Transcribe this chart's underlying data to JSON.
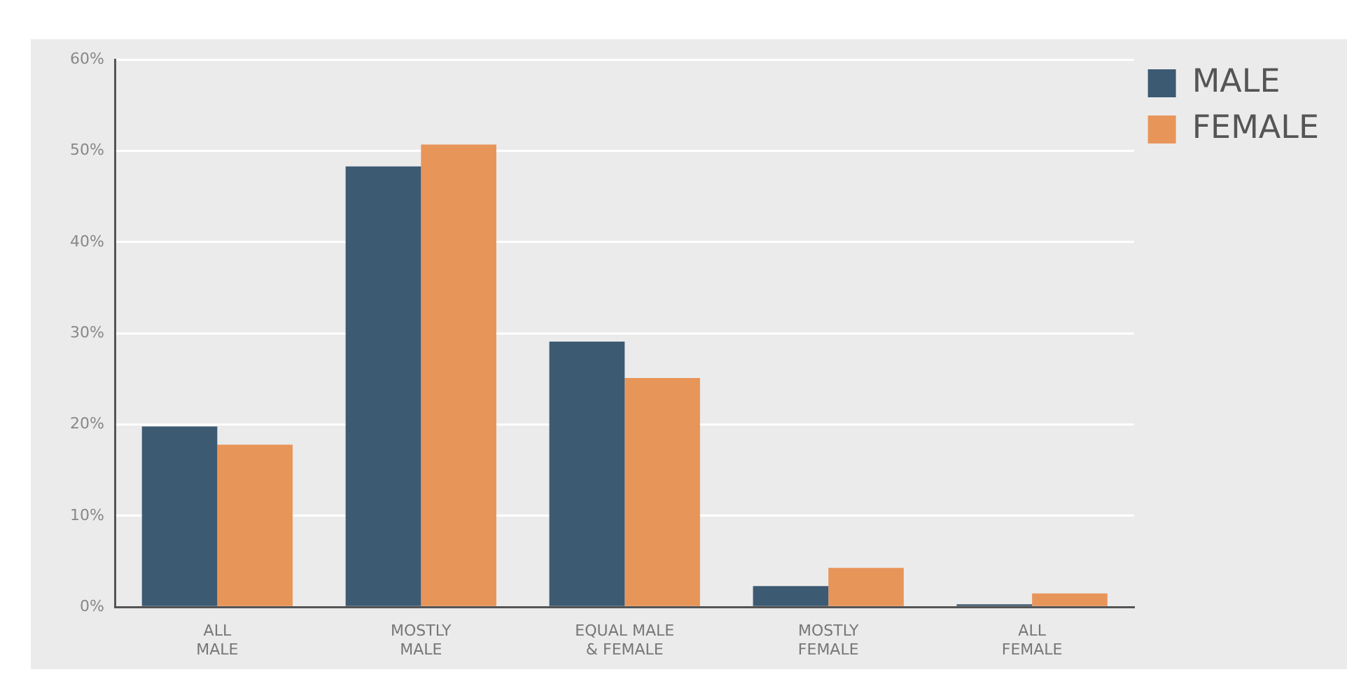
{
  "chart_data": {
    "type": "bar",
    "categories": [
      "ALL\nMALE",
      "MOSTLY\nMALE",
      "EQUAL MALE\n& FEMALE",
      "MOSTLY\nFEMALE",
      "ALL\nFEMALE"
    ],
    "series": [
      {
        "name": "MALE",
        "color": "#3d5a73",
        "values": [
          19.8,
          48.3,
          29.1,
          2.3,
          0.3
        ]
      },
      {
        "name": "FEMALE",
        "color": "#e8955a",
        "values": [
          17.8,
          50.7,
          25.1,
          4.3,
          1.5
        ]
      }
    ],
    "ylim": [
      0,
      60
    ],
    "yticks": [
      {
        "value": 0,
        "label": "0%"
      },
      {
        "value": 10,
        "label": "10%"
      },
      {
        "value": 20,
        "label": "20%"
      },
      {
        "value": 30,
        "label": "30%"
      },
      {
        "value": 40,
        "label": "40%"
      },
      {
        "value": 50,
        "label": "50%"
      },
      {
        "value": 60,
        "label": "60%"
      }
    ],
    "grid": "y",
    "legend": "top right"
  }
}
